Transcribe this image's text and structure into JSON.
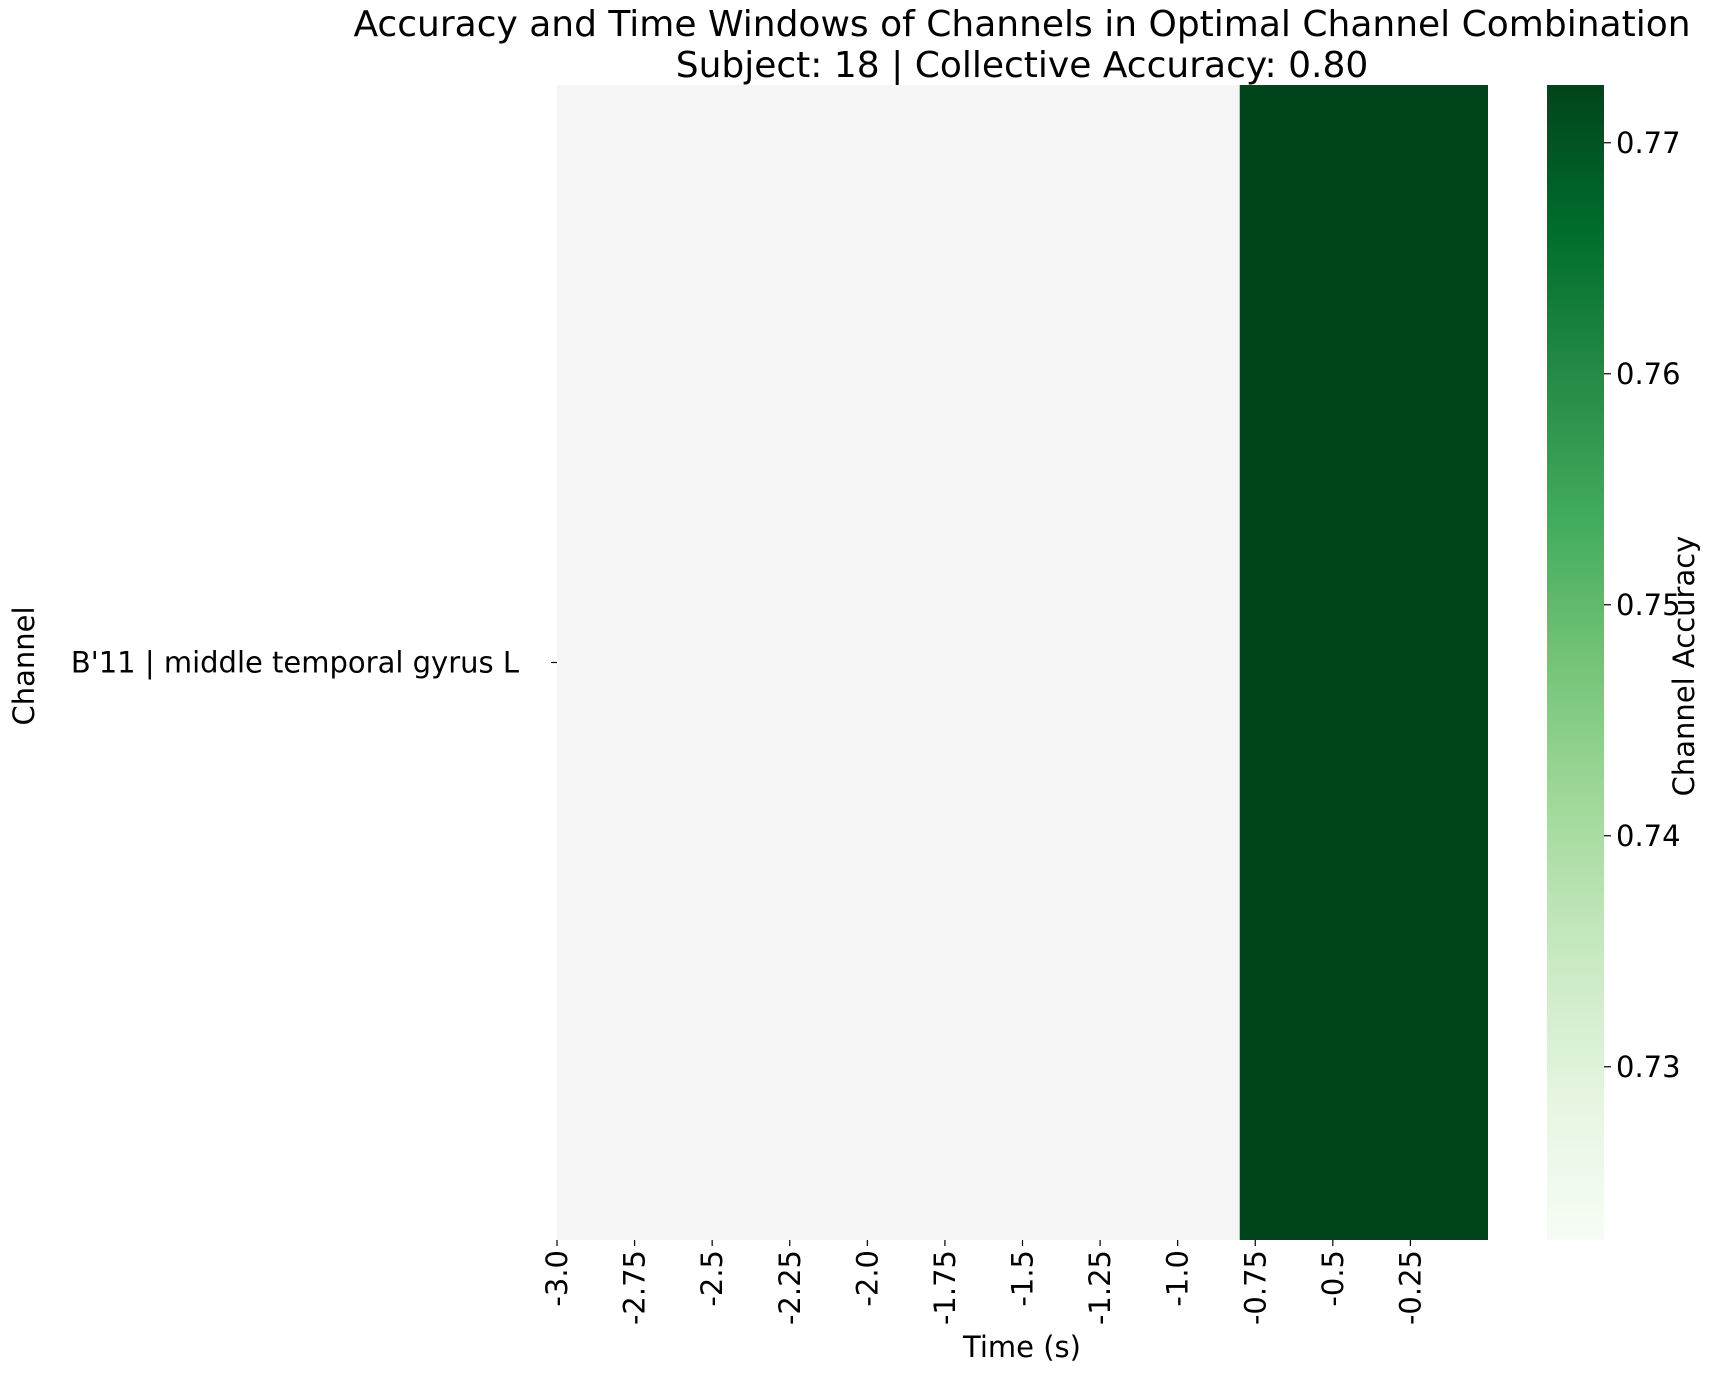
{
  "chart_data": {
    "type": "heatmap",
    "title": "Accuracy and Time Windows of Channels in Optimal Channel Combination",
    "subtitle": "Subject: 18 | Collective Accuracy: 0.80",
    "xlabel": "Time (s)",
    "ylabel": "Channel",
    "x_ticks": [
      "-3.0",
      "-2.75",
      "-2.5",
      "-2.25",
      "-2.0",
      "-1.75",
      "-1.5",
      "-1.25",
      "-1.0",
      "-0.75",
      "-0.5",
      "-0.25"
    ],
    "x_range": [
      -3.0,
      0.0
    ],
    "rows": [
      "B'11 | middle temporal gyrus L"
    ],
    "cells": [
      {
        "row": 0,
        "x_start": -3.0,
        "x_end": -0.8,
        "value": null
      },
      {
        "row": 0,
        "x_start": -0.8,
        "x_end": 0.0,
        "value": 0.773
      }
    ],
    "colorbar": {
      "label": "Channel Accuracy",
      "range": [
        0.7225,
        0.7725
      ],
      "ticks": [
        "0.73",
        "0.74",
        "0.75",
        "0.76",
        "0.77"
      ],
      "colormap": "Greens",
      "low_color": "#f7fcf5",
      "high_color": "#00441b"
    },
    "empty_color": "#f5f5f5"
  }
}
